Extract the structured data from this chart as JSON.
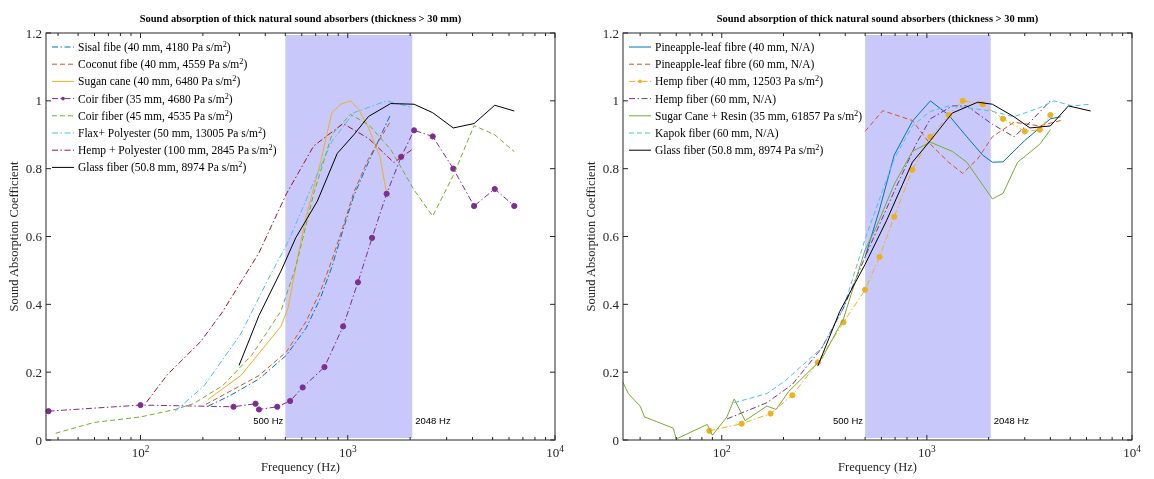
{
  "chart_data": [
    {
      "type": "line",
      "title": "Sound absorption of thick natural sound absorbers (thickness > 30 mm)",
      "xlabel": "Frequency (Hz)",
      "ylabel": "Sound Absorption Coefficient",
      "log": "x",
      "grid": false,
      "legend": "top left",
      "xlim": [
        35,
        10000
      ],
      "ylim": [
        0,
        1.2
      ],
      "xticks": [
        {
          "value": 40,
          "label": null
        },
        {
          "value": 50,
          "label": null
        },
        {
          "value": 60,
          "label": null
        },
        {
          "value": 70,
          "label": null
        },
        {
          "value": 80,
          "label": null
        },
        {
          "value": 90,
          "label": null
        },
        {
          "value": 100,
          "label": "10$^{2}$"
        },
        {
          "value": 200,
          "label": null
        },
        {
          "value": 300,
          "label": null
        },
        {
          "value": 400,
          "label": null
        },
        {
          "value": 500,
          "label": null
        },
        {
          "value": 600,
          "label": null
        },
        {
          "value": 700,
          "label": null
        },
        {
          "value": 800,
          "label": null
        },
        {
          "value": 900,
          "label": null
        },
        {
          "value": 1000,
          "label": "10$^{3}$"
        },
        {
          "value": 2000,
          "label": null
        },
        {
          "value": 3000,
          "label": null
        },
        {
          "value": 4000,
          "label": null
        },
        {
          "value": 5000,
          "label": null
        },
        {
          "value": 6000,
          "label": null
        },
        {
          "value": 7000,
          "label": null
        },
        {
          "value": 8000,
          "label": null
        },
        {
          "value": 9000,
          "label": null
        },
        {
          "value": 10000,
          "label": "10$^{4}$"
        }
      ],
      "yticks": [
        0,
        0.2,
        0.4,
        0.6,
        0.8,
        1,
        1.2
      ],
      "bands": [
        {
          "axis": "x",
          "from": 500,
          "to": 2048,
          "color": "#c8c8fa"
        }
      ],
      "annotations": [
        "500 Hz",
        "2048 Hz"
      ],
      "series": [
        {
          "name": "Sisal fibe (40 mm, 4180 Pa s/m$^{2}$)",
          "color": "#0072bd",
          "line_style": "dashdot",
          "marker": "none",
          "x": [
            212,
            269,
            373,
            506,
            630,
            740,
            838,
            950,
            1070,
            1260,
            1610
          ],
          "values": [
            0.1,
            0.13,
            0.18,
            0.25,
            0.33,
            0.42,
            0.51,
            0.62,
            0.72,
            0.82,
            0.96
          ]
        },
        {
          "name": "Coconut fibe (40 mm, 4559 Pa s/m$^{2}$)",
          "color": "#d95319",
          "line_style": "dashed",
          "marker": "none",
          "x": [
            207,
            373,
            506,
            630,
            740,
            838,
            950,
            1070,
            1260,
            1610
          ],
          "values": [
            0.105,
            0.19,
            0.26,
            0.35,
            0.44,
            0.53,
            0.63,
            0.73,
            0.83,
            0.94
          ]
        },
        {
          "name": "Sugan cane (40 mm, 6480 Pa s/m$^{2}$)",
          "color": "#edb120",
          "line_style": "solid",
          "marker": "none",
          "x": [
            212,
            305,
            390,
            476,
            516,
            561,
            630,
            740,
            838,
            925,
            1030,
            1130,
            1260,
            1430,
            1540,
            1610
          ],
          "values": [
            0.12,
            0.19,
            0.27,
            0.335,
            0.39,
            0.51,
            0.66,
            0.82,
            0.965,
            0.99,
            1.0,
            0.975,
            0.92,
            0.835,
            0.726,
            0.715
          ]
        },
        {
          "name": "Coir fiber (35 mm, 4680 Pa s/m$^{2}$)",
          "color": "#7e2f8e",
          "line_style": "dashdot",
          "marker": "circle",
          "x": [
            36,
            100,
            281,
            359,
            373,
            457,
            527,
            606,
            772,
            950,
            1120,
            1310,
            1540,
            1810,
            2090,
            2570,
            3230,
            4070,
            5120,
            6360
          ],
          "values": [
            0.085,
            0.103,
            0.098,
            0.107,
            0.09,
            0.098,
            0.115,
            0.155,
            0.215,
            0.335,
            0.465,
            0.596,
            0.726,
            0.835,
            0.913,
            0.895,
            0.8,
            0.69,
            0.74,
            0.69
          ]
        },
        {
          "name": "Coir fiber (45 mm, 4535 Pa s/m$^{2}$)",
          "color": "#77ac30",
          "line_style": "dashed",
          "marker": "none",
          "x": [
            39,
            60,
            100,
            147,
            180,
            249,
            344,
            476,
            561,
            685,
            838,
            1030,
            1260,
            1610,
            2090,
            2570,
            3230,
            4070,
            5120,
            6360
          ],
          "values": [
            0.02,
            0.052,
            0.068,
            0.09,
            0.107,
            0.16,
            0.25,
            0.38,
            0.51,
            0.726,
            0.9,
            0.96,
            0.93,
            0.857,
            0.737,
            0.66,
            0.78,
            0.927,
            0.9,
            0.85
          ]
        },
        {
          "name": "Flax+ Polyester (50 mm, 13005 Pa s/m$^{2}$)",
          "color": "#4dbeee",
          "line_style": "dashdot",
          "marker": "none",
          "x": [
            147,
            203,
            305,
            406,
            516,
            685,
            838,
            1070,
            1540,
            2050
          ],
          "values": [
            0.085,
            0.16,
            0.313,
            0.465,
            0.585,
            0.76,
            0.88,
            0.965,
            1.0,
            0.98
          ]
        },
        {
          "name": "Hemp + Polyester (100 mm, 2845 Pa s/m$^{2}$)",
          "color": "#a2142f",
          "line_style": "dashdot",
          "marker": "none",
          "x": [
            107,
            135,
            195,
            249,
            373,
            506,
            685,
            950,
            1260,
            1670,
            2050
          ],
          "values": [
            0.112,
            0.193,
            0.29,
            0.378,
            0.552,
            0.726,
            0.867,
            0.933,
            0.889,
            0.818,
            0.857
          ]
        },
        {
          "name": "Glass fiber (50.8 mm, 8974 Pa s/m$^{2}$)",
          "color": "#000000",
          "line_style": "solid",
          "marker": "none",
          "x": [
            299,
            373,
            476,
            561,
            713,
            890,
            1070,
            1260,
            1610,
            2090,
            2570,
            3230,
            4070,
            5120,
            6360
          ],
          "values": [
            0.22,
            0.367,
            0.498,
            0.596,
            0.704,
            0.845,
            0.9,
            0.954,
            0.992,
            0.99,
            0.965,
            0.92,
            0.933,
            0.987,
            0.97
          ]
        }
      ]
    },
    {
      "type": "line",
      "title": "Sound absorption of thick natural sound absorbers (thickness > 30 mm)",
      "xlabel": "Frequency (Hz)",
      "ylabel": "Sound Absorption Coefficient",
      "log": "x",
      "grid": false,
      "legend": "top left",
      "xlim": [
        33,
        10000
      ],
      "ylim": [
        0,
        1.2
      ],
      "xticks": [
        {
          "value": 40,
          "label": null
        },
        {
          "value": 50,
          "label": null
        },
        {
          "value": 60,
          "label": null
        },
        {
          "value": 70,
          "label": null
        },
        {
          "value": 80,
          "label": null
        },
        {
          "value": 90,
          "label": null
        },
        {
          "value": 100,
          "label": "10$^{2}$"
        },
        {
          "value": 200,
          "label": null
        },
        {
          "value": 300,
          "label": null
        },
        {
          "value": 400,
          "label": null
        },
        {
          "value": 500,
          "label": null
        },
        {
          "value": 600,
          "label": null
        },
        {
          "value": 700,
          "label": null
        },
        {
          "value": 800,
          "label": null
        },
        {
          "value": 900,
          "label": null
        },
        {
          "value": 1000,
          "label": "10$^{3}$"
        },
        {
          "value": 2000,
          "label": null
        },
        {
          "value": 3000,
          "label": null
        },
        {
          "value": 4000,
          "label": null
        },
        {
          "value": 5000,
          "label": null
        },
        {
          "value": 6000,
          "label": null
        },
        {
          "value": 7000,
          "label": null
        },
        {
          "value": 8000,
          "label": null
        },
        {
          "value": 9000,
          "label": null
        },
        {
          "value": 10000,
          "label": "10$^{4}$"
        }
      ],
      "yticks": [
        0,
        0.2,
        0.4,
        0.6,
        0.8,
        1,
        1.2
      ],
      "bands": [
        {
          "axis": "x",
          "from": 500,
          "to": 2048,
          "color": "#c8c8fa"
        }
      ],
      "annotations": [
        "500 Hz",
        "2048 Hz"
      ],
      "series": [
        {
          "name": "Pineapple-leaf fibre (40 mm, N/A)",
          "color": "#0072bd",
          "line_style": "solid",
          "marker": "none",
          "x": [
            500,
            588,
            693,
            850,
            1040,
            1277,
            1566,
            1870,
            2086,
            2350,
            3000,
            4000,
            4490
          ],
          "values": [
            0.54,
            0.68,
            0.84,
            0.94,
            1.0,
            0.958,
            0.894,
            0.84,
            0.819,
            0.82,
            0.883,
            0.947,
            0.953
          ]
        },
        {
          "name": "Pineapple-leaf fibre (60 mm, N/A)",
          "color": "#d95319",
          "line_style": "dashed",
          "marker": "none",
          "x": [
            500,
            609,
            850,
            1040,
            1277,
            1495,
            1770,
            2086,
            2660,
            3550,
            4490
          ],
          "values": [
            0.91,
            0.971,
            0.942,
            0.872,
            0.819,
            0.786,
            0.829,
            0.894,
            0.937,
            0.926,
            0.942
          ]
        },
        {
          "name": "Hemp fiber (40 mm, 12503 Pa s/m$^{2}$)",
          "color": "#edb120",
          "line_style": "dashdot",
          "marker": "circle",
          "x": [
            87,
            125,
            173,
            221,
            294,
            392,
            500,
            588,
            693,
            850,
            1040,
            1277,
            1495,
            1870,
            2350,
            3000,
            3550,
            4000
          ],
          "values": [
            0.027,
            0.048,
            0.078,
            0.132,
            0.229,
            0.347,
            0.443,
            0.54,
            0.658,
            0.797,
            0.894,
            0.958,
            1.0,
            0.99,
            0.947,
            0.91,
            0.915,
            0.958
          ]
        },
        {
          "name": "Hemp fiber (60 mm, N/A)",
          "color": "#7e2f8e",
          "line_style": "dashdot",
          "marker": "none",
          "x": [
            106,
            166,
            221,
            307,
            392,
            500,
            693,
            885,
            1040,
            1330,
            1566,
            2086,
            2660,
            3180,
            4000
          ],
          "values": [
            0.062,
            0.11,
            0.164,
            0.271,
            0.389,
            0.54,
            0.733,
            0.872,
            0.947,
            0.985,
            0.985,
            0.931,
            0.894,
            0.937,
            1.0
          ]
        },
        {
          "name": "Sugar Cane + Resin (35 mm, 61857 Pa s/m$^{2}$)",
          "color": "#77ac30",
          "line_style": "solid",
          "marker": "none",
          "x": [
            33,
            35,
            40,
            42,
            58,
            59,
            60,
            85,
            90,
            106,
            115,
            130,
            166,
            184,
            212,
            307,
            392,
            500,
            565,
            693,
            850,
            1040,
            1330,
            1566,
            2086,
            2350,
            2770,
            3550,
            4000
          ],
          "values": [
            0.17,
            0.137,
            0.1,
            0.068,
            0.035,
            0.019,
            0.003,
            0.046,
            0.014,
            0.068,
            0.121,
            0.057,
            0.1,
            0.09,
            0.143,
            0.239,
            0.357,
            0.561,
            0.626,
            0.754,
            0.851,
            0.878,
            0.851,
            0.819,
            0.711,
            0.727,
            0.819,
            0.872,
            0.915
          ]
        },
        {
          "name": "Kapok fiber (60 mm, N/A)",
          "color": "#4dbeee",
          "line_style": "dashed",
          "marker": "none",
          "x": [
            115,
            166,
            204,
            307,
            392,
            500,
            588,
            693,
            850,
            1040,
            1277,
            1566,
            2086,
            2660,
            3550,
            4160,
            5120,
            6290
          ],
          "values": [
            0.11,
            0.137,
            0.175,
            0.271,
            0.389,
            0.593,
            0.711,
            0.829,
            0.926,
            0.969,
            0.985,
            0.98,
            0.969,
            0.953,
            0.98,
            1.0,
            0.985,
            0.99
          ]
        },
        {
          "name": "Glass fiber (50.8 mm, 8974 Pa s/m$^{2}$)",
          "color": "#000000",
          "line_style": "solid",
          "marker": "none",
          "x": [
            294,
            376,
            500,
            636,
            850,
            1040,
            1330,
            1770,
            2086,
            2660,
            3180,
            4000,
            4900,
            6290
          ],
          "values": [
            0.218,
            0.379,
            0.518,
            0.647,
            0.819,
            0.883,
            0.964,
            0.996,
            0.99,
            0.953,
            0.92,
            0.926,
            0.985,
            0.97
          ]
        }
      ]
    }
  ]
}
